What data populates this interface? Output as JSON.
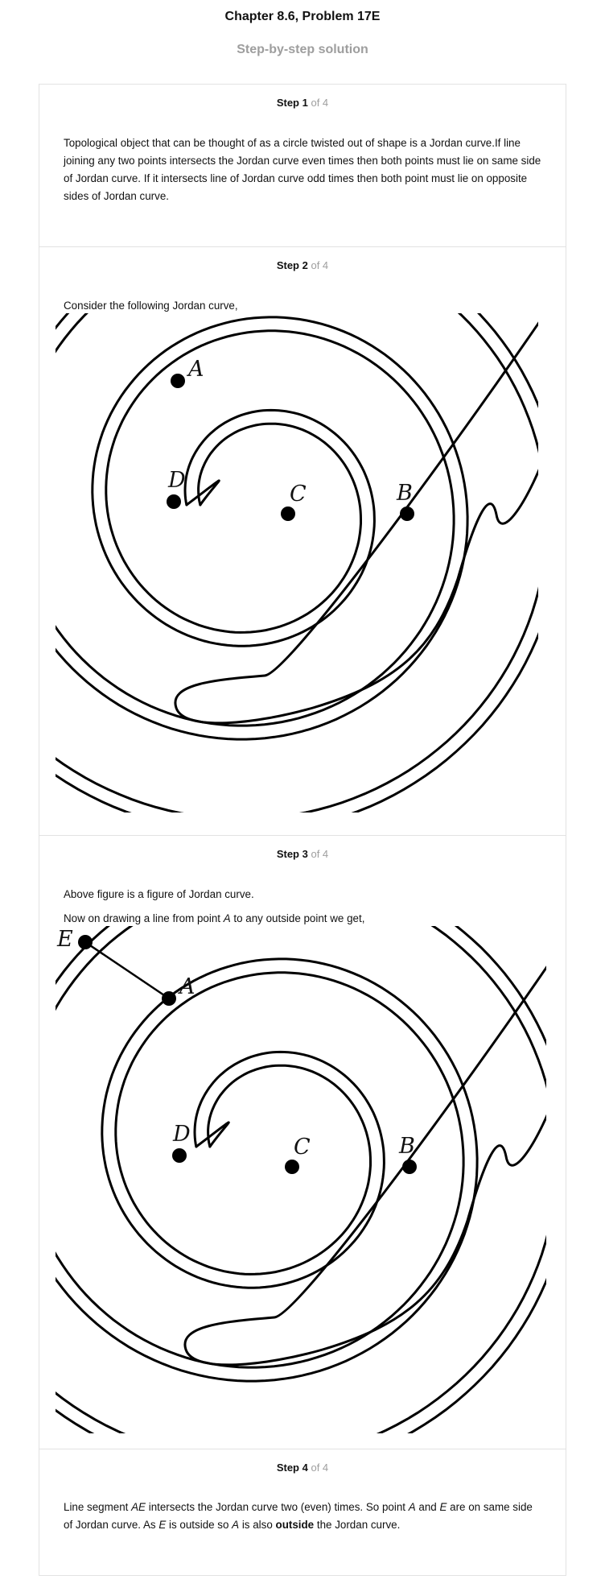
{
  "header": {
    "chapter_title": "Chapter 8.6, Problem 17E",
    "subtitle": "Step-by-step solution"
  },
  "steps": [
    {
      "label": "Step 1",
      "of": "of 4",
      "text": "Topological object that can be thought of as a circle twisted out of shape is a Jordan curve.If line joining any two points intersects the Jordan curve even times then both points must lie on same side of Jordan curve. If it intersects line of Jordan curve odd times then both point must lie on opposite sides of Jordan curve."
    },
    {
      "label": "Step 2",
      "of": "of 4",
      "text": "Consider the following Jordan curve,",
      "figure_labels": {
        "a": "A",
        "b": "B",
        "c": "C",
        "d": "D"
      }
    },
    {
      "label": "Step 3",
      "of": "of 4",
      "text1": "Above figure is a figure of Jordan curve.",
      "text2_a": "Now on drawing a line from point ",
      "text2_point": "A",
      "text2_b": " to any outside point we get,",
      "figure_labels": {
        "a": "A",
        "b": "B",
        "c": "C",
        "d": "D",
        "e": "E"
      }
    },
    {
      "label": "Step 4",
      "of": "of 4",
      "t1": "Line segment ",
      "t2": "AE",
      "t3": " intersects the Jordan curve two (even) times. So point ",
      "t4": "A",
      "t5": " and ",
      "t6": "E",
      "t7": " are on same side of Jordan curve. As ",
      "t8": "E",
      "t9": " is outside so ",
      "t10": "A",
      "t11": " is also ",
      "t12": "outside",
      "t13": " the Jordan curve."
    }
  ]
}
